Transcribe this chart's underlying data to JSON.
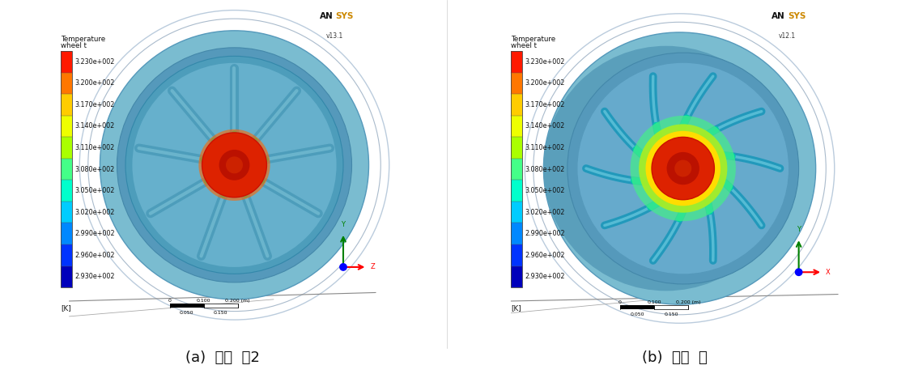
{
  "figure_width": 11.08,
  "figure_height": 4.67,
  "dpi": 100,
  "background_color": "#ffffff",
  "caption_a": "(a)  기본  휠2",
  "caption_b": "(b)  개발  휠",
  "caption_fontsize": 13,
  "colorbar_title_line1": "Temperature",
  "colorbar_title_line2": "wheel t",
  "colorbar_labels": [
    "3.230e+002",
    "3.200e+002",
    "3.170e+002",
    "3.140e+002",
    "3.110e+002",
    "3.080e+002",
    "3.050e+002",
    "3.020e+002",
    "2.990e+002",
    "2.960e+002",
    "2.930e+002"
  ],
  "colorbar_unit": "[K]",
  "colorbar_colors": [
    "#ff1a00",
    "#ff7700",
    "#ffcc00",
    "#eeff00",
    "#aaff00",
    "#44ff88",
    "#00ffcc",
    "#00ccff",
    "#0088ff",
    "#0033ff",
    "#0000bb"
  ],
  "ansys_version_a": "v13.1",
  "ansys_version_b": "v12.1",
  "panel_bg": "#ffffff",
  "wheel_bg": "#e8f0f8",
  "tire_blue": "#7ab0cc",
  "rim_blue": "#4488aa",
  "hub_red": "#dd2200",
  "spoke_cyan": "#00ccbb",
  "spoke_blue": "#3399bb",
  "glow_yellow": "#ffdd00",
  "glow_green": "#88ee44",
  "ground_color": "#999999",
  "scale_bar_color": "#111111"
}
